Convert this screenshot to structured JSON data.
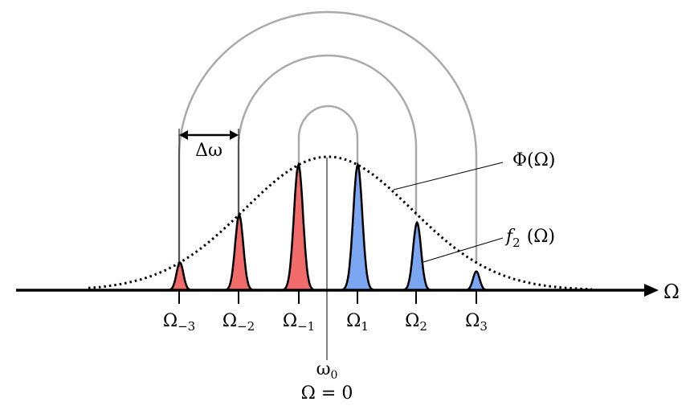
{
  "axis": {
    "label": "Ω"
  },
  "spacing_label": "Δω",
  "envelope_label": "Φ(Ω)",
  "peak_label": {
    "main": "f",
    "sub": "2",
    "arg": "(Ω)"
  },
  "center_label": {
    "omega0_main": "ω",
    "omega0_sub": "0",
    "omega_zero": "Ω = 0"
  },
  "ticks": [
    {
      "main": "Ω",
      "sub": "−3"
    },
    {
      "main": "Ω",
      "sub": "−2"
    },
    {
      "main": "Ω",
      "sub": "−1"
    },
    {
      "main": "Ω",
      "sub": "1"
    },
    {
      "main": "Ω",
      "sub": "2"
    },
    {
      "main": "Ω",
      "sub": "3"
    }
  ],
  "peaks": [
    {
      "index": -3,
      "amplitude": 0.22,
      "color": "#f26b6b"
    },
    {
      "index": -2,
      "amplitude": 0.6,
      "color": "#f26b6b"
    },
    {
      "index": -1,
      "amplitude": 1.0,
      "color": "#f26b6b"
    },
    {
      "index": 1,
      "amplitude": 1.0,
      "color": "#7aa6f2"
    },
    {
      "index": 2,
      "amplitude": 0.54,
      "color": "#7aa6f2"
    },
    {
      "index": 3,
      "amplitude": 0.15,
      "color": "#7aa6f2"
    }
  ],
  "colors": {
    "red_sideband": "#f26b6b",
    "blue_sideband": "#7aa6f2",
    "pairing_arcs": "#aaaaaa",
    "axis": "#000000"
  }
}
